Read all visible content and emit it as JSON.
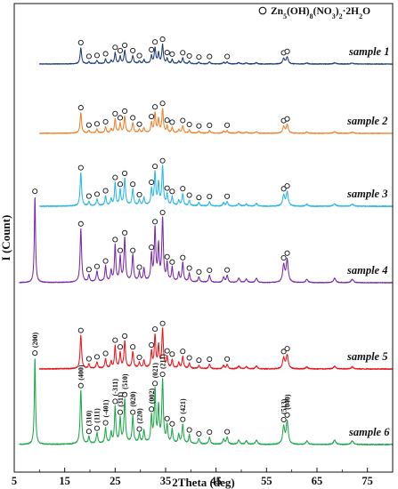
{
  "chart_data": {
    "type": "line",
    "xlabel": "2Theta (deg)",
    "ylabel": "I (Count)",
    "xlim": [
      5,
      80
    ],
    "xticks": [
      5,
      15,
      25,
      35,
      45,
      55,
      65,
      75
    ],
    "legend": {
      "marker": "open-circle",
      "label_parts": [
        "Zn",
        "5",
        "(OH)",
        "8",
        "(NO",
        "3",
        ")",
        "2",
        "·2H",
        "2",
        "O"
      ],
      "placement": "top-right"
    },
    "peaks": [
      {
        "x": 9.1,
        "h": 1.0,
        "w": 0.18
      },
      {
        "x": 18.2,
        "h": 0.62,
        "w": 0.22
      },
      {
        "x": 19.8,
        "h": 0.08,
        "w": 0.2
      },
      {
        "x": 21.4,
        "h": 0.12,
        "w": 0.22
      },
      {
        "x": 23.1,
        "h": 0.18,
        "w": 0.2
      },
      {
        "x": 24.2,
        "h": 0.12,
        "w": 0.2
      },
      {
        "x": 25.0,
        "h": 0.42,
        "w": 0.2
      },
      {
        "x": 26.0,
        "h": 0.28,
        "w": 0.2
      },
      {
        "x": 26.9,
        "h": 0.5,
        "w": 0.22
      },
      {
        "x": 28.5,
        "h": 0.3,
        "w": 0.22
      },
      {
        "x": 29.8,
        "h": 0.1,
        "w": 0.2
      },
      {
        "x": 30.7,
        "h": 0.14,
        "w": 0.2
      },
      {
        "x": 32.2,
        "h": 0.3,
        "w": 0.2
      },
      {
        "x": 32.9,
        "h": 0.6,
        "w": 0.22
      },
      {
        "x": 33.6,
        "h": 0.4,
        "w": 0.2
      },
      {
        "x": 34.4,
        "h": 0.72,
        "w": 0.22
      },
      {
        "x": 35.3,
        "h": 0.2,
        "w": 0.2
      },
      {
        "x": 36.3,
        "h": 0.16,
        "w": 0.2
      },
      {
        "x": 37.6,
        "h": 0.1,
        "w": 0.2
      },
      {
        "x": 38.4,
        "h": 0.22,
        "w": 0.22
      },
      {
        "x": 39.7,
        "h": 0.1,
        "w": 0.2
      },
      {
        "x": 41.6,
        "h": 0.06,
        "w": 0.22
      },
      {
        "x": 43.7,
        "h": 0.08,
        "w": 0.24
      },
      {
        "x": 46.5,
        "h": 0.06,
        "w": 0.25
      },
      {
        "x": 47.2,
        "h": 0.08,
        "w": 0.25
      },
      {
        "x": 49.5,
        "h": 0.05,
        "w": 0.3
      },
      {
        "x": 51.0,
        "h": 0.04,
        "w": 0.3
      },
      {
        "x": 53.0,
        "h": 0.05,
        "w": 0.3
      },
      {
        "x": 58.4,
        "h": 0.2,
        "w": 0.3
      },
      {
        "x": 59.1,
        "h": 0.26,
        "w": 0.3
      },
      {
        "x": 63.0,
        "h": 0.04,
        "w": 0.3
      },
      {
        "x": 68.5,
        "h": 0.05,
        "w": 0.35
      },
      {
        "x": 72.0,
        "h": 0.04,
        "w": 0.35
      }
    ],
    "series": [
      {
        "name": "sample 1",
        "color": "#1f3d7a",
        "x_start": 10.0,
        "amp": 0.3,
        "skip_peak_x": 9.1,
        "noise": 0.006
      },
      {
        "name": "sample 2",
        "color": "#ef7f28",
        "x_start": 10.0,
        "amp": 0.38,
        "skip_peak_x": 9.1,
        "noise": 0.006
      },
      {
        "name": "sample 3",
        "color": "#29b6e8",
        "x_start": 10.0,
        "amp": 0.62,
        "skip_peak_x": 9.1,
        "noise": 0.008
      },
      {
        "name": "sample 4",
        "color": "#7a2aa6",
        "x_start": 6.0,
        "amp": 1.0,
        "noise": 0.006
      },
      {
        "name": "sample 5",
        "color": "#e8151b",
        "x_start": 10.0,
        "amp": 0.62,
        "skip_peak_x": 9.1,
        "noise": 0.008
      },
      {
        "name": "sample 6",
        "color": "#1ea84a",
        "x_start": 6.0,
        "amp": 1.0,
        "noise": 0.008
      }
    ],
    "hkl_labels": [
      {
        "text": "(200)",
        "x": 9.1
      },
      {
        "text": "(400)",
        "x": 18.2
      },
      {
        "text": "(310)",
        "x": 19.8
      },
      {
        "text": "(111)",
        "x": 21.4
      },
      {
        "text": "(-401)",
        "x": 23.1
      },
      {
        "text": "(-311)",
        "x": 25.0
      },
      {
        "text": "(311)",
        "x": 26.0
      },
      {
        "text": "(510)",
        "x": 26.9
      },
      {
        "text": "(020)",
        "x": 28.5
      },
      {
        "text": "(220)",
        "x": 29.8
      },
      {
        "text": "(002)",
        "x": 32.2
      },
      {
        "text": "(021)",
        "x": 32.9
      },
      {
        "text": "(211)",
        "x": 34.4
      },
      {
        "text": "(421)",
        "x": 38.4
      },
      {
        "text": "(513)",
        "x": 58.4
      },
      {
        "text": "(040)",
        "x": 59.1
      }
    ],
    "circle_marker_x": [
      18.2,
      19.8,
      21.4,
      23.1,
      25.0,
      26.0,
      26.9,
      28.5,
      29.8,
      32.2,
      32.9,
      34.4,
      35.3,
      36.3,
      38.4,
      39.7,
      41.6,
      43.7,
      47.2,
      58.4,
      59.1
    ]
  }
}
